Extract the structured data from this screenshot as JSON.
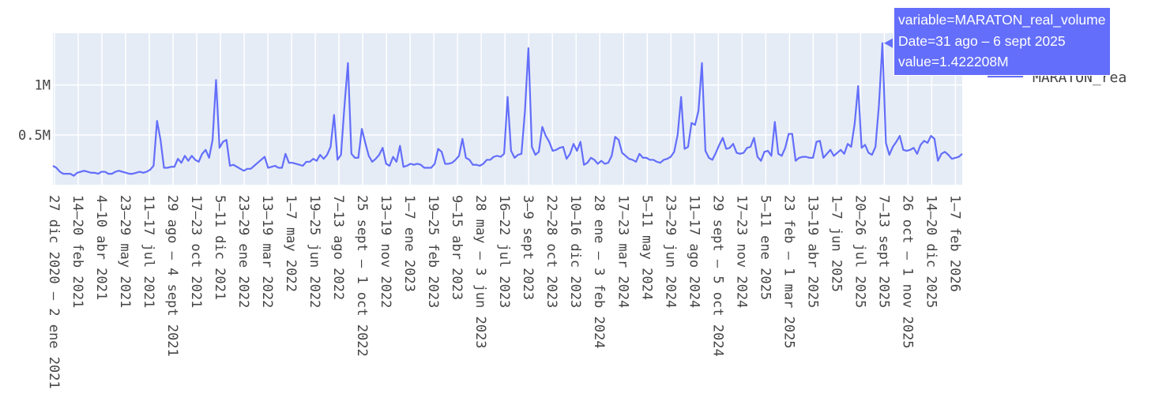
{
  "chart_data": {
    "type": "line",
    "series": [
      {
        "name": "MARATON_real_volume",
        "color": "#636efa",
        "values": [
          0.19,
          0.17,
          0.13,
          0.11,
          0.11,
          0.11,
          0.09,
          0.12,
          0.13,
          0.14,
          0.13,
          0.12,
          0.12,
          0.11,
          0.13,
          0.13,
          0.11,
          0.11,
          0.13,
          0.14,
          0.13,
          0.12,
          0.11,
          0.11,
          0.12,
          0.13,
          0.12,
          0.13,
          0.15,
          0.19,
          0.64,
          0.45,
          0.17,
          0.17,
          0.18,
          0.18,
          0.26,
          0.22,
          0.29,
          0.24,
          0.29,
          0.25,
          0.23,
          0.31,
          0.35,
          0.27,
          0.45,
          1.05,
          0.37,
          0.43,
          0.45,
          0.19,
          0.2,
          0.18,
          0.16,
          0.14,
          0.16,
          0.16,
          0.19,
          0.22,
          0.25,
          0.28,
          0.17,
          0.18,
          0.19,
          0.17,
          0.17,
          0.31,
          0.22,
          0.22,
          0.21,
          0.2,
          0.19,
          0.23,
          0.23,
          0.26,
          0.24,
          0.3,
          0.26,
          0.3,
          0.38,
          0.7,
          0.25,
          0.3,
          0.79,
          1.22,
          0.31,
          0.27,
          0.27,
          0.56,
          0.42,
          0.29,
          0.23,
          0.26,
          0.3,
          0.37,
          0.21,
          0.19,
          0.28,
          0.23,
          0.39,
          0.18,
          0.19,
          0.21,
          0.2,
          0.21,
          0.2,
          0.17,
          0.17,
          0.17,
          0.21,
          0.36,
          0.33,
          0.21,
          0.21,
          0.22,
          0.25,
          0.29,
          0.46,
          0.27,
          0.25,
          0.2,
          0.2,
          0.19,
          0.21,
          0.25,
          0.25,
          0.28,
          0.29,
          0.28,
          0.31,
          0.88,
          0.34,
          0.27,
          0.3,
          0.31,
          0.74,
          1.37,
          0.38,
          0.3,
          0.33,
          0.58,
          0.49,
          0.43,
          0.34,
          0.35,
          0.37,
          0.38,
          0.26,
          0.31,
          0.41,
          0.34,
          0.43,
          0.2,
          0.22,
          0.27,
          0.25,
          0.21,
          0.24,
          0.21,
          0.22,
          0.29,
          0.48,
          0.45,
          0.32,
          0.29,
          0.26,
          0.25,
          0.23,
          0.31,
          0.27,
          0.27,
          0.25,
          0.25,
          0.23,
          0.22,
          0.25,
          0.26,
          0.28,
          0.33,
          0.5,
          0.88,
          0.36,
          0.38,
          0.62,
          0.6,
          0.74,
          1.22,
          0.34,
          0.27,
          0.25,
          0.32,
          0.4,
          0.47,
          0.36,
          0.37,
          0.41,
          0.32,
          0.31,
          0.32,
          0.37,
          0.38,
          0.47,
          0.28,
          0.24,
          0.33,
          0.34,
          0.29,
          0.63,
          0.31,
          0.29,
          0.37,
          0.51,
          0.51,
          0.24,
          0.27,
          0.28,
          0.28,
          0.27,
          0.27,
          0.43,
          0.44,
          0.27,
          0.31,
          0.35,
          0.29,
          0.32,
          0.35,
          0.31,
          0.41,
          0.38,
          0.61,
          0.99,
          0.37,
          0.4,
          0.32,
          0.3,
          0.38,
          0.8,
          1.42,
          0.42,
          0.3,
          0.38,
          0.43,
          0.49,
          0.35,
          0.34,
          0.35,
          0.37,
          0.31,
          0.4,
          0.44,
          0.42,
          0.49,
          0.46,
          0.24,
          0.31,
          0.33,
          0.3,
          0.26,
          0.27,
          0.28,
          0.31
        ]
      }
    ],
    "y_tick_labels": [
      {
        "value": 0.5,
        "label": "0.5M"
      },
      {
        "value": 1.0,
        "label": "1M"
      }
    ],
    "ylim": [
      0,
      1.52
    ],
    "x_tick_labels": [
      "27 dic 2020 – 2 ene 2021",
      "14–20 feb 2021",
      "4–10 abr 2021",
      "23–29 may 2021",
      "11–17 jul 2021",
      "29 ago – 4 sept 2021",
      "17–23 oct 2021",
      "5–11 dic 2021",
      "23–29 ene 2022",
      "13–19 mar 2022",
      "1–7 may 2022",
      "19–25 jun 2022",
      "7–13 ago 2022",
      "25 sept – 1 oct 2022",
      "13–19 nov 2022",
      "1–7 ene 2023",
      "19–25 feb 2023",
      "9–15 abr 2023",
      "28 may – 3 jun 2023",
      "16–22 jul 2023",
      "3–9 sept 2023",
      "22–28 oct 2023",
      "10–16 dic 2023",
      "28 ene – 3 feb 2024",
      "17–23 mar 2024",
      "5–11 may 2024",
      "23–29 jun 2024",
      "11–17 ago 2024",
      "29 sept – 5 oct 2024",
      "17–23 nov 2024",
      "5–11 ene 2025",
      "23 feb – 1 mar 2025",
      "13–19 abr 2025",
      "1–7 jun 2025",
      "20–26 jul 2025",
      "7–13 sept 2025",
      "26 oct – 1 nov 2025",
      "14–20 dic 2025",
      "1–7 feb 2026"
    ],
    "grid": true,
    "legend_placement": "top-right",
    "legend": [
      {
        "name": "MARATON_rea",
        "color": "#636efa"
      }
    ],
    "hover": {
      "lines": [
        "variable=MARATON_real_volume",
        "Date=31 ago – 6 sept 2025",
        "value=1.422208M"
      ],
      "point_index": 239
    },
    "colors": {
      "plot_bg": "#e5ecf6",
      "grid": "#ffffff",
      "line": "#636efa",
      "tooltip_bg": "#636efa"
    }
  }
}
